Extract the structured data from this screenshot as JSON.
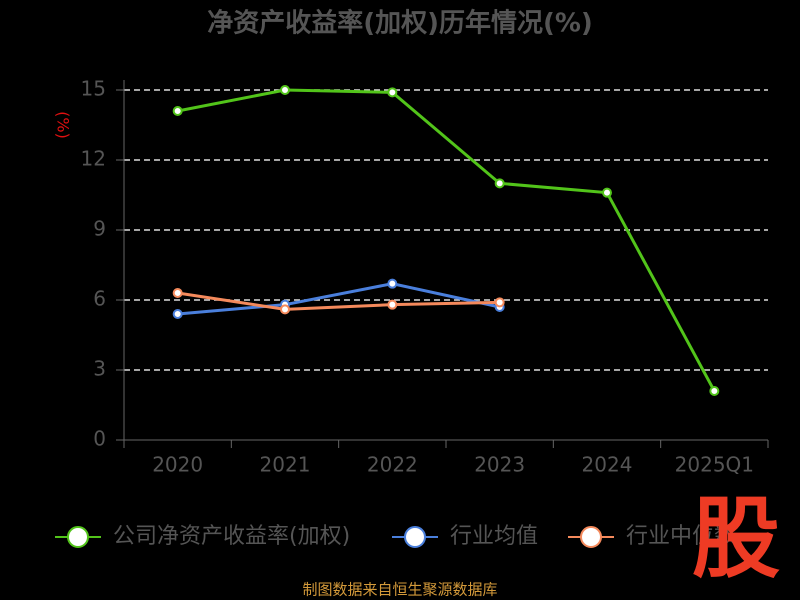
{
  "chart_data": {
    "type": "line",
    "title": "净资产收益率(加权)历年情况(%)",
    "y_label": "(%)",
    "categories": [
      "2020",
      "2021",
      "2022",
      "2023",
      "2024",
      "2025Q1"
    ],
    "series": [
      {
        "name": "公司净资产收益率(加权)",
        "color": "#52c41a",
        "values": [
          14.1,
          15.0,
          14.9,
          11.0,
          10.6,
          2.1
        ]
      },
      {
        "name": "行业均值",
        "color": "#4a7fdc",
        "values": [
          5.4,
          5.8,
          6.7,
          5.7,
          null,
          null
        ]
      },
      {
        "name": "行业中位数",
        "color": "#f58a5c",
        "values": [
          6.3,
          5.6,
          5.8,
          5.9,
          null,
          null
        ]
      }
    ],
    "ylim": [
      0,
      15
    ],
    "yticks": [
      0,
      3,
      6,
      9,
      12,
      15
    ],
    "grid": true,
    "source": "制图数据来自恒生聚源数据库",
    "logo": "股"
  }
}
